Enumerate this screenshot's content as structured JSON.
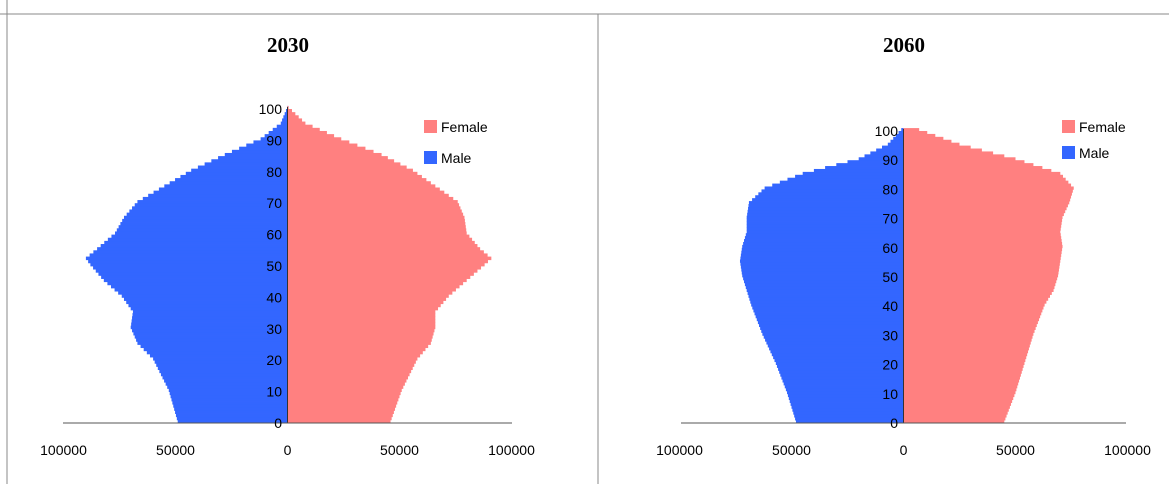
{
  "colors": {
    "female": "#ff8080",
    "male": "#3366ff",
    "border": "#888888"
  },
  "chart_data": [
    {
      "type": "population-pyramid",
      "title": "2030",
      "xlim": [
        -100000,
        100000
      ],
      "ylim": [
        0,
        100
      ],
      "x_tick_labels": [
        "100000",
        "50000",
        "0",
        "50000",
        "100000"
      ],
      "y_tick_labels": [
        "0",
        "10",
        "20",
        "30",
        "40",
        "50",
        "60",
        "70",
        "80",
        "90",
        "100"
      ],
      "legend": [
        "Female",
        "Male"
      ],
      "legend_position": "top-right",
      "age_points": [
        0,
        10,
        20,
        25,
        30,
        35,
        40,
        45,
        50,
        52,
        55,
        60,
        65,
        70,
        75,
        80,
        85,
        90,
        95,
        100
      ],
      "series": [
        {
          "name": "Male",
          "values": [
            49000,
            53000,
            60000,
            67000,
            70000,
            69000,
            74000,
            82000,
            88000,
            90000,
            85000,
            77000,
            73000,
            67000,
            55000,
            43000,
            28000,
            12000,
            3000,
            100
          ]
        },
        {
          "name": "Female",
          "values": [
            46000,
            51000,
            58000,
            64000,
            66000,
            66000,
            72000,
            80000,
            88000,
            91000,
            86000,
            80000,
            79000,
            76000,
            66000,
            56000,
            42000,
            24000,
            8000,
            500
          ]
        }
      ]
    },
    {
      "type": "population-pyramid",
      "title": "2060",
      "xlim": [
        -100000,
        100000
      ],
      "ylim": [
        0,
        100
      ],
      "x_tick_labels": [
        "100000",
        "50000",
        "0",
        "50000",
        "100000"
      ],
      "y_tick_labels": [
        "0",
        "10",
        "20",
        "30",
        "40",
        "50",
        "60",
        "70",
        "80",
        "90",
        "100"
      ],
      "legend": [
        "Female",
        "Male"
      ],
      "legend_position": "top-right",
      "age_points": [
        0,
        10,
        20,
        30,
        40,
        45,
        50,
        55,
        60,
        65,
        70,
        75,
        80,
        85,
        90,
        95,
        100
      ],
      "series": [
        {
          "name": "Male",
          "values": [
            48000,
            52000,
            57000,
            63000,
            68000,
            70000,
            72000,
            73000,
            72000,
            70000,
            70000,
            69000,
            62000,
            45000,
            20000,
            7000,
            1000
          ]
        },
        {
          "name": "Female",
          "values": [
            45000,
            50000,
            54000,
            58000,
            63000,
            67000,
            69000,
            70000,
            71000,
            70000,
            71000,
            74000,
            76000,
            70000,
            50000,
            25000,
            7000
          ]
        }
      ]
    }
  ]
}
